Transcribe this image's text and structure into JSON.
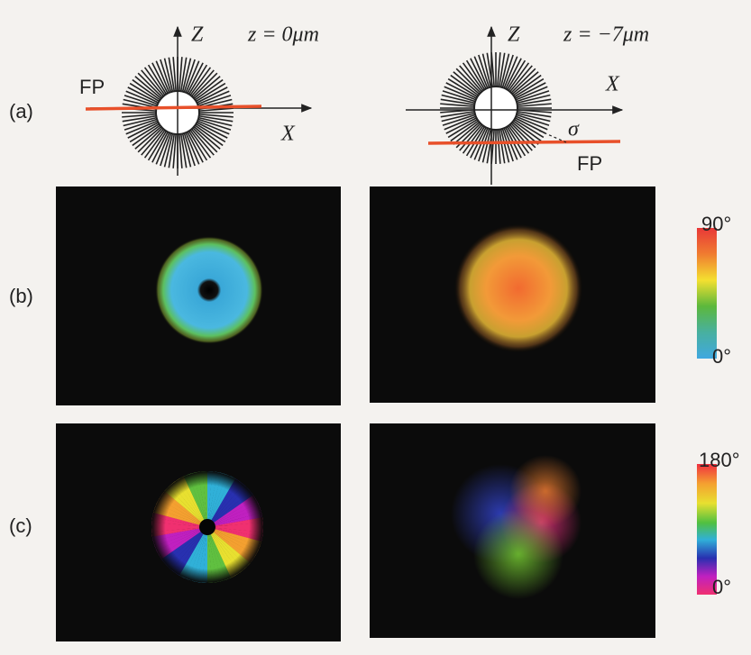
{
  "row_labels": [
    "(a)",
    "(b)",
    "(c)"
  ],
  "diagrams": [
    {
      "z_axis": "Z",
      "depth": "z = 0μm",
      "x_axis": "X",
      "plane": "FP"
    },
    {
      "z_axis": "Z",
      "depth": "z = −7μm",
      "x_axis": "X",
      "plane": "FP",
      "angle": "σ"
    }
  ],
  "colorbars": [
    {
      "max": "90°",
      "min": "0°"
    },
    {
      "max": "180°",
      "min": "0°"
    }
  ]
}
